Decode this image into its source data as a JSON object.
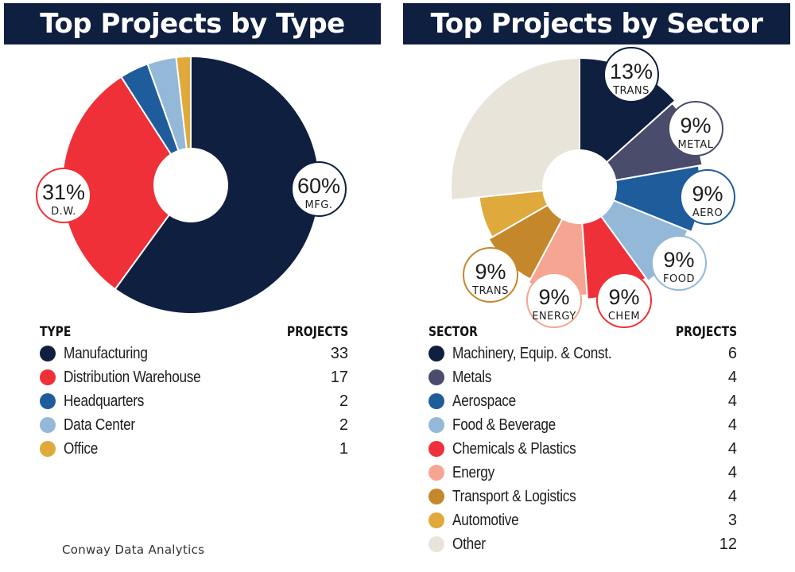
{
  "footer": "Conway Data Analytics",
  "chart_data": [
    {
      "type": "pie",
      "title": "Top Projects by Type",
      "legend_header": [
        "TYPE",
        "PROJECTS"
      ],
      "categories": [
        "Manufacturing",
        "Distribution Warehouse",
        "Headquarters",
        "Data Center",
        "Office"
      ],
      "values": [
        33,
        17,
        2,
        2,
        1
      ],
      "colors": [
        "#0f1f40",
        "#ef3038",
        "#1f5c9c",
        "#93b8d8",
        "#e0a93c"
      ],
      "callouts": [
        {
          "category": "Manufacturing",
          "pct": "60%",
          "short": "MFG."
        },
        {
          "category": "Distribution Warehouse",
          "pct": "31%",
          "short": "D.W."
        }
      ]
    },
    {
      "type": "pie",
      "title": "Top Projects by Sector",
      "legend_header": [
        "SECTOR",
        "PROJECTS"
      ],
      "categories": [
        "Machinery, Equip. & Const.",
        "Metals",
        "Aerospace",
        "Food & Beverage",
        "Chemicals & Plastics",
        "Energy",
        "Transport & Logistics",
        "Automotive",
        "Other"
      ],
      "values": [
        6,
        4,
        4,
        4,
        4,
        4,
        4,
        3,
        12
      ],
      "colors": [
        "#0f1f40",
        "#4a4c6b",
        "#1f5c9c",
        "#93b8d8",
        "#ef3038",
        "#f5a592",
        "#c5872c",
        "#e0a93c",
        "#e8e4da"
      ],
      "callouts": [
        {
          "category": "Machinery, Equip. & Const.",
          "pct": "13%",
          "short": "TRANS"
        },
        {
          "category": "Metals",
          "pct": "9%",
          "short": "METAL"
        },
        {
          "category": "Aerospace",
          "pct": "9%",
          "short": "AERO"
        },
        {
          "category": "Food & Beverage",
          "pct": "9%",
          "short": "FOOD"
        },
        {
          "category": "Chemicals & Plastics",
          "pct": "9%",
          "short": "CHEM"
        },
        {
          "category": "Energy",
          "pct": "9%",
          "short": "ENERGY"
        },
        {
          "category": "Transport & Logistics",
          "pct": "9%",
          "short": "TRANS"
        }
      ]
    }
  ]
}
